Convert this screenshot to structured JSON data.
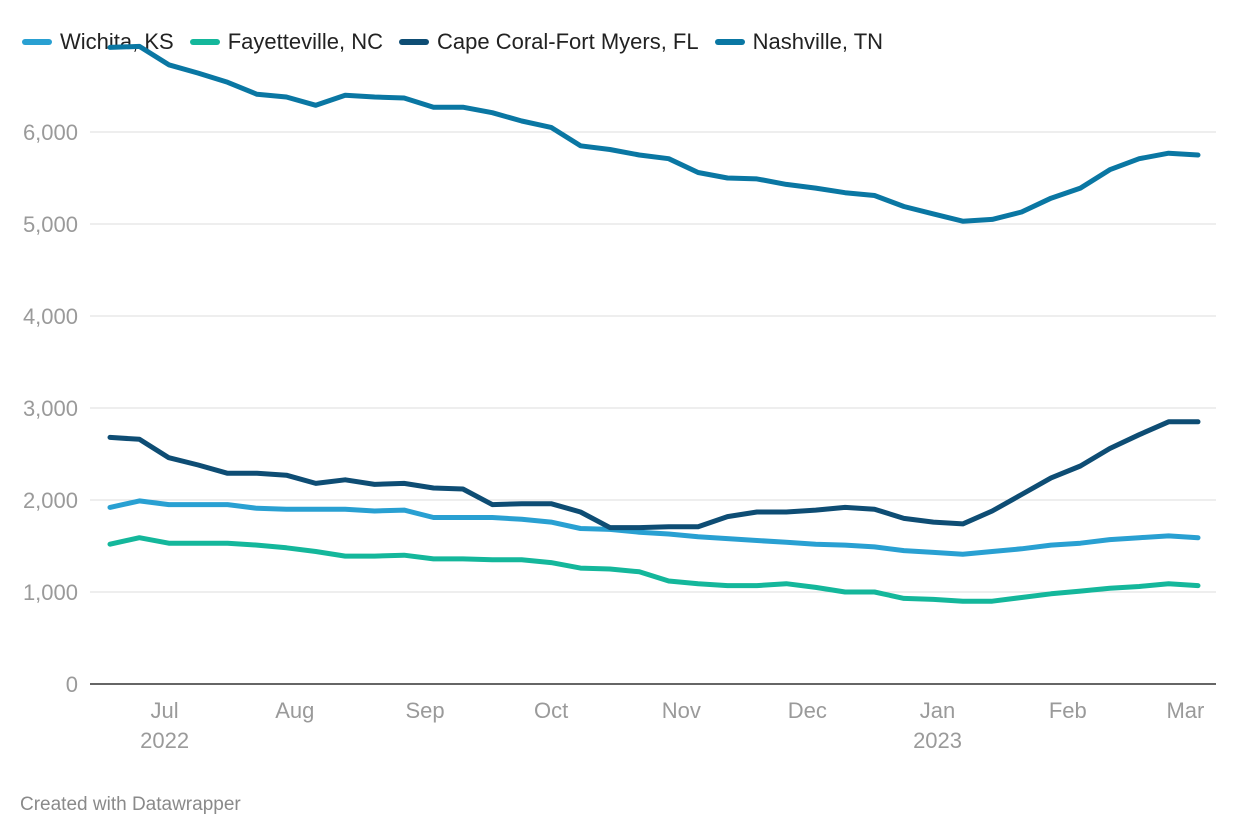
{
  "legend": [
    {
      "name": "Wichita, KS",
      "color": "#29a0d2"
    },
    {
      "name": "Fayetteville, NC",
      "color": "#14b79b"
    },
    {
      "name": "Cape Coral-Fort Myers, FL",
      "color": "#0e4d74"
    },
    {
      "name": "Nashville, TN",
      "color": "#0a77a3"
    }
  ],
  "footer": "Created with Datawrapper",
  "chart_data": {
    "type": "line",
    "title": "",
    "xlabel": "",
    "ylabel": "",
    "ylim": [
      0,
      7000
    ],
    "grid": true,
    "legend_position": "top-left",
    "y_ticks": [
      0,
      1000,
      2000,
      3000,
      4000,
      5000,
      6000
    ],
    "y_tick_labels": [
      "0",
      "1,000",
      "2,000",
      "3,000",
      "4,000",
      "5,000",
      "6,000"
    ],
    "x_ticks": [
      {
        "date": "2022-07-01",
        "label": "Jul",
        "year": "2022"
      },
      {
        "date": "2022-08-01",
        "label": "Aug",
        "year": ""
      },
      {
        "date": "2022-09-01",
        "label": "Sep",
        "year": ""
      },
      {
        "date": "2022-10-01",
        "label": "Oct",
        "year": ""
      },
      {
        "date": "2022-11-01",
        "label": "Nov",
        "year": ""
      },
      {
        "date": "2022-12-01",
        "label": "Dec",
        "year": ""
      },
      {
        "date": "2023-01-01",
        "label": "Jan",
        "year": "2023"
      },
      {
        "date": "2023-02-01",
        "label": "Feb",
        "year": ""
      },
      {
        "date": "2023-03-01",
        "label": "Mar",
        "year": ""
      }
    ],
    "x": [
      "2022-06-18",
      "2022-06-25",
      "2022-07-02",
      "2022-07-09",
      "2022-07-16",
      "2022-07-23",
      "2022-07-30",
      "2022-08-06",
      "2022-08-13",
      "2022-08-20",
      "2022-08-27",
      "2022-09-03",
      "2022-09-10",
      "2022-09-17",
      "2022-09-24",
      "2022-10-01",
      "2022-10-08",
      "2022-10-15",
      "2022-10-22",
      "2022-10-29",
      "2022-11-05",
      "2022-11-12",
      "2022-11-19",
      "2022-11-26",
      "2022-12-03",
      "2022-12-10",
      "2022-12-17",
      "2022-12-24",
      "2022-12-31",
      "2023-01-07",
      "2023-01-14",
      "2023-01-21",
      "2023-01-28",
      "2023-02-04",
      "2023-02-11",
      "2023-02-18",
      "2023-02-25",
      "2023-03-04"
    ],
    "series": [
      {
        "name": "Wichita, KS",
        "color": "#29a0d2",
        "values": [
          1920,
          1990,
          1950,
          1950,
          1950,
          1910,
          1900,
          1900,
          1900,
          1880,
          1890,
          1810,
          1810,
          1810,
          1790,
          1760,
          1690,
          1680,
          1650,
          1630,
          1600,
          1580,
          1560,
          1540,
          1520,
          1510,
          1490,
          1450,
          1430,
          1410,
          1440,
          1470,
          1510,
          1530,
          1570,
          1590,
          1610,
          1590
        ]
      },
      {
        "name": "Fayetteville, NC",
        "color": "#14b79b",
        "values": [
          1520,
          1590,
          1530,
          1530,
          1530,
          1510,
          1480,
          1440,
          1390,
          1390,
          1400,
          1360,
          1360,
          1350,
          1350,
          1320,
          1260,
          1250,
          1220,
          1120,
          1090,
          1070,
          1070,
          1090,
          1050,
          1000,
          1000,
          930,
          920,
          900,
          900,
          940,
          980,
          1010,
          1040,
          1060,
          1090,
          1070
        ]
      },
      {
        "name": "Cape Coral-Fort Myers, FL",
        "color": "#0e4d74",
        "values": [
          2680,
          2660,
          2460,
          2380,
          2290,
          2290,
          2270,
          2180,
          2220,
          2170,
          2180,
          2130,
          2120,
          1950,
          1960,
          1960,
          1870,
          1700,
          1700,
          1710,
          1710,
          1820,
          1870,
          1870,
          1890,
          1920,
          1900,
          1800,
          1760,
          1740,
          1880,
          2060,
          2240,
          2370,
          2560,
          2710,
          2850,
          2850
        ]
      },
      {
        "name": "Nashville, TN",
        "color": "#0a77a3",
        "values": [
          6920,
          6930,
          6730,
          6640,
          6540,
          6410,
          6380,
          6290,
          6400,
          6380,
          6370,
          6270,
          6270,
          6210,
          6120,
          6050,
          5850,
          5810,
          5750,
          5710,
          5560,
          5500,
          5490,
          5430,
          5390,
          5340,
          5310,
          5190,
          5110,
          5030,
          5050,
          5130,
          5280,
          5390,
          5590,
          5710,
          5770,
          5750
        ]
      }
    ]
  }
}
